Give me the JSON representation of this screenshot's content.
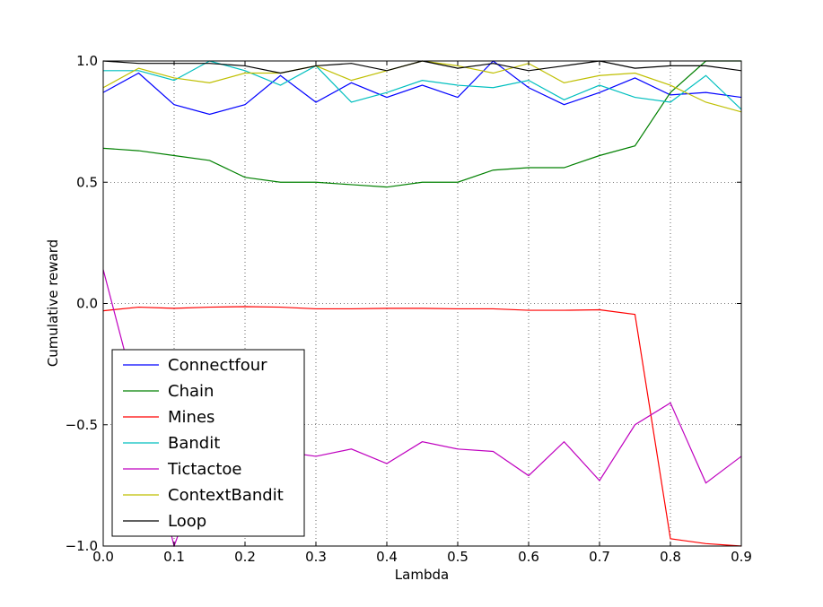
{
  "chart_data": {
    "type": "line",
    "title": "",
    "xlabel": "Lambda",
    "ylabel": "Cumulative reward",
    "xlim": [
      0.0,
      0.9
    ],
    "ylim": [
      -1.0,
      1.0
    ],
    "grid": true,
    "legend_position": "lower-left",
    "x": [
      0.0,
      0.05,
      0.1,
      0.15,
      0.2,
      0.25,
      0.3,
      0.35,
      0.4,
      0.45,
      0.5,
      0.55,
      0.6,
      0.65,
      0.7,
      0.75,
      0.8,
      0.85,
      0.9
    ],
    "xticks": [
      "0.0",
      "0.1",
      "0.2",
      "0.3",
      "0.4",
      "0.5",
      "0.6",
      "0.7",
      "0.8",
      "0.9"
    ],
    "yticks": [
      "−1.0",
      "−0.5",
      "0.0",
      "0.5",
      "1.0"
    ],
    "series": [
      {
        "name": "Connectfour",
        "color": "#0000ff",
        "values": [
          0.87,
          0.95,
          0.82,
          0.78,
          0.82,
          0.94,
          0.83,
          0.91,
          0.85,
          0.9,
          0.85,
          1.0,
          0.89,
          0.82,
          0.87,
          0.93,
          0.86,
          0.87,
          0.85
        ]
      },
      {
        "name": "Chain",
        "color": "#008000",
        "values": [
          0.64,
          0.63,
          0.61,
          0.59,
          0.52,
          0.5,
          0.5,
          0.49,
          0.48,
          0.5,
          0.5,
          0.55,
          0.56,
          0.56,
          0.61,
          0.65,
          0.87,
          1.0,
          1.0
        ]
      },
      {
        "name": "Mines",
        "color": "#ff0000",
        "values": [
          -0.03,
          -0.015,
          -0.02,
          -0.015,
          -0.013,
          -0.015,
          -0.022,
          -0.022,
          -0.02,
          -0.02,
          -0.022,
          -0.022,
          -0.028,
          -0.028,
          -0.026,
          -0.045,
          -0.97,
          -0.99,
          -1.0
        ]
      },
      {
        "name": "Bandit",
        "color": "#00bfbf",
        "values": [
          0.96,
          0.96,
          0.92,
          1.0,
          0.96,
          0.9,
          0.98,
          0.83,
          0.87,
          0.92,
          0.9,
          0.89,
          0.92,
          0.84,
          0.9,
          0.85,
          0.83,
          0.94,
          0.8
        ]
      },
      {
        "name": "Tictactoe",
        "color": "#bf00bf",
        "values": [
          0.14,
          -0.42,
          -1.0,
          -0.6,
          -0.58,
          -0.61,
          -0.63,
          -0.6,
          -0.66,
          -0.57,
          -0.6,
          -0.61,
          -0.71,
          -0.57,
          -0.73,
          -0.5,
          -0.41,
          -0.74,
          -0.63
        ]
      },
      {
        "name": "ContextBandit",
        "color": "#bfbf00",
        "values": [
          0.89,
          0.97,
          0.93,
          0.91,
          0.95,
          0.95,
          0.98,
          0.92,
          0.96,
          1.0,
          0.98,
          0.95,
          0.99,
          0.91,
          0.94,
          0.95,
          0.9,
          0.83,
          0.79
        ]
      },
      {
        "name": "Loop",
        "color": "#000000",
        "values": [
          1.0,
          0.99,
          0.99,
          0.99,
          0.98,
          0.95,
          0.98,
          0.99,
          0.96,
          1.0,
          0.97,
          0.99,
          0.96,
          0.98,
          1.0,
          0.97,
          0.98,
          0.98,
          0.96
        ]
      }
    ]
  }
}
